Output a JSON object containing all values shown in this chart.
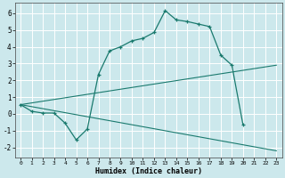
{
  "xlabel": "Humidex (Indice chaleur)",
  "background_color": "#cce8ec",
  "grid_color": "#ffffff",
  "line_color": "#1a7a6e",
  "line1_x": [
    0,
    1,
    2,
    3,
    4,
    5,
    6,
    7,
    8,
    9,
    10,
    11,
    12,
    13,
    14,
    15,
    16,
    17,
    18,
    19,
    20,
    21,
    22,
    23
  ],
  "line1_y": [
    0.55,
    0.15,
    0.05,
    0.05,
    -0.55,
    -1.55,
    -0.9,
    2.35,
    3.75,
    4.0,
    4.35,
    4.5,
    4.85,
    6.15,
    5.6,
    5.5,
    5.35,
    5.2,
    3.5,
    2.9,
    -0.65,
    null,
    null,
    null
  ],
  "line2_x": [
    0,
    23
  ],
  "line2_y": [
    0.55,
    2.9
  ],
  "line3_x": [
    0,
    23
  ],
  "line3_y": [
    0.55,
    -2.2
  ],
  "xlim": [
    -0.5,
    23.5
  ],
  "ylim": [
    -2.6,
    6.6
  ],
  "xticks": [
    0,
    1,
    2,
    3,
    4,
    5,
    6,
    7,
    8,
    9,
    10,
    11,
    12,
    13,
    14,
    15,
    16,
    17,
    18,
    19,
    20,
    21,
    22,
    23
  ],
  "yticks": [
    -2,
    -1,
    0,
    1,
    2,
    3,
    4,
    5,
    6
  ]
}
